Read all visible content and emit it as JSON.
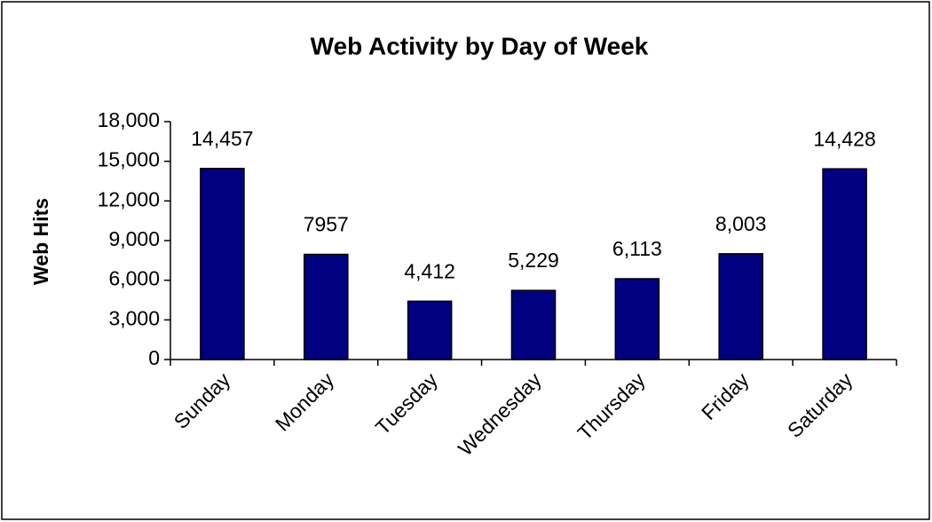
{
  "chart_data": {
    "type": "bar",
    "title": "Web Activity by Day of Week",
    "y_label": "Web Hits",
    "categories": [
      "Sunday",
      "Monday",
      "Tuesday",
      "Wednesday",
      "Thursday",
      "Friday",
      "Saturday"
    ],
    "values": [
      14457,
      7957,
      4412,
      5229,
      6113,
      8003,
      14428
    ],
    "value_labels": [
      "14,457",
      "7957",
      "4,412",
      "5,229",
      "6,113",
      "8,003",
      "14,428"
    ],
    "color": "#000080",
    "ylim": [
      0,
      18000
    ],
    "yticks": [
      0,
      {
        "value": 3000,
        "label": "3,000"
      },
      {
        "value": 6000,
        "label": "6,000"
      },
      {
        "value": 9000,
        "label": "9,000"
      },
      {
        "value": 12000,
        "label": "12,000"
      },
      {
        "value": 15000,
        "label": "15,000"
      },
      {
        "value": 18000,
        "label": "18,000"
      }
    ],
    "grid": false
  }
}
